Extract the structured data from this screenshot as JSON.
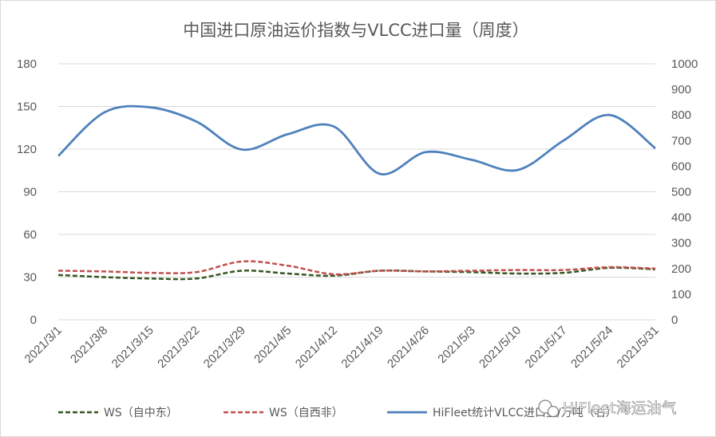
{
  "chart_data": {
    "type": "line",
    "title": "中国进口原油运价指数与VLCC进口量（周度）",
    "categories": [
      "2021/3/1",
      "2021/3/8",
      "2021/3/15",
      "2021/3/22",
      "2021/3/29",
      "2021/4/5",
      "2021/4/12",
      "2021/4/19",
      "2021/4/26",
      "2021/5/3",
      "2021/5/10",
      "2021/5/17",
      "2021/5/24",
      "2021/5/31"
    ],
    "y_left": {
      "ticks": [
        "0",
        "30",
        "60",
        "90",
        "120",
        "150",
        "180"
      ],
      "ylim": [
        0,
        180
      ]
    },
    "y_right": {
      "ticks": [
        "0",
        "100",
        "200",
        "300",
        "400",
        "500",
        "600",
        "700",
        "800",
        "900",
        "1000"
      ],
      "ylim": [
        0,
        1000
      ]
    },
    "grid": true,
    "legend_position": "bottom",
    "series": [
      {
        "name": "WS（自中东）",
        "axis": "left",
        "style": "dashed",
        "color": "#375623",
        "values": [
          31.5,
          30,
          29,
          29,
          34.5,
          32.5,
          31,
          34.5,
          34,
          33.5,
          32.5,
          33,
          36.5,
          35.5
        ]
      },
      {
        "name": "WS（自西非）",
        "axis": "left",
        "style": "dashed",
        "color": "#c0504d",
        "values": [
          34.5,
          34,
          33,
          33.5,
          41,
          38,
          32,
          34.5,
          34,
          34.5,
          35,
          35,
          37,
          36
        ]
      },
      {
        "name": "HiFleet统计VLCC进口量/万吨（右）",
        "axis": "right",
        "style": "solid",
        "color": "#4f81bd",
        "values": [
          640,
          810,
          830,
          775,
          665,
          725,
          755,
          570,
          655,
          625,
          585,
          700,
          800,
          670
        ]
      }
    ]
  },
  "watermark": {
    "text": "HiFleet海运油气",
    "icon": "wechat-icon"
  }
}
